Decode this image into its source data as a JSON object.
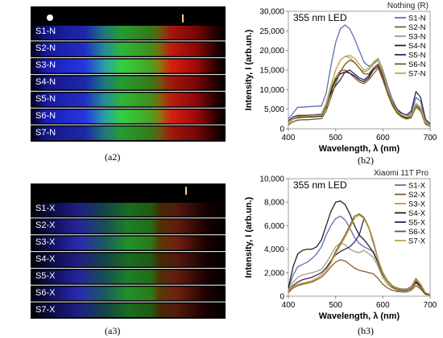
{
  "panels": {
    "a2": {
      "label": "(a2)",
      "rows": [
        "S1-N",
        "S2-N",
        "S3-N",
        "S4-N",
        "S5-N",
        "S6-N",
        "S7-N"
      ]
    },
    "a3": {
      "label": "(a3)",
      "rows": [
        "S1-X",
        "S2-X",
        "S3-X",
        "S4-X",
        "S5-X",
        "S6-X",
        "S7-X"
      ]
    },
    "b2": {
      "label": "(b2)"
    },
    "b3": {
      "label": "(b3)"
    }
  },
  "chart_data": [
    {
      "id": "b2",
      "type": "line",
      "title": "Nothing (R)",
      "annotation": "355 nm LED",
      "xlabel": "Wavelength, λ (nm)",
      "ylabel": "Intensity, I (arb.un.)",
      "xlim": [
        400,
        700
      ],
      "ylim": [
        0,
        30000
      ],
      "xticks": [
        400,
        500,
        600,
        700
      ],
      "yticks": [
        0,
        5000,
        10000,
        15000,
        20000,
        25000,
        30000
      ],
      "ytick_labels": [
        "0",
        "5,000",
        "10,000",
        "15,000",
        "20,000",
        "25,000",
        "30,000"
      ],
      "grid": false,
      "legend": "right",
      "x": [
        400,
        410,
        420,
        430,
        440,
        450,
        460,
        470,
        480,
        490,
        500,
        510,
        520,
        530,
        540,
        550,
        560,
        570,
        580,
        590,
        600,
        610,
        620,
        630,
        640,
        650,
        660,
        670,
        680,
        690,
        700
      ],
      "series": [
        {
          "name": "S1-N",
          "color": "#5b6fb5",
          "values": [
            2500,
            4000,
            5500,
            5500,
            5600,
            5700,
            5800,
            5800,
            9000,
            16000,
            22000,
            25500,
            26500,
            25500,
            23000,
            20000,
            17000,
            16000,
            16500,
            18000,
            15000,
            11000,
            7500,
            5000,
            3500,
            3000,
            4000,
            8000,
            7000,
            2000,
            1000
          ]
        },
        {
          "name": "S2-N",
          "color": "#8a5a28",
          "values": [
            1500,
            2500,
            3000,
            3200,
            3300,
            3400,
            3500,
            3600,
            6000,
            10000,
            13000,
            14800,
            15000,
            14200,
            13000,
            12000,
            11500,
            12500,
            14000,
            15500,
            12500,
            9000,
            6000,
            4000,
            3000,
            2500,
            3000,
            6000,
            5000,
            1500,
            800
          ]
        },
        {
          "name": "S3-N",
          "color": "#a59a7a",
          "values": [
            2000,
            3000,
            3500,
            3500,
            3500,
            3600,
            3700,
            3800,
            6500,
            11000,
            15000,
            17500,
            18500,
            18200,
            17000,
            15500,
            14500,
            15000,
            16500,
            17500,
            14000,
            10000,
            6500,
            4500,
            3500,
            3000,
            3500,
            6500,
            5500,
            1800,
            900
          ]
        },
        {
          "name": "S4-N",
          "color": "#222222",
          "values": [
            1500,
            2500,
            2800,
            2900,
            3000,
            3000,
            3100,
            3200,
            5500,
            9500,
            12500,
            14000,
            14500,
            14200,
            13500,
            12500,
            12000,
            13000,
            15000,
            16000,
            13500,
            9500,
            6500,
            4500,
            3300,
            2800,
            3200,
            6000,
            5000,
            1500,
            800
          ]
        },
        {
          "name": "S5-N",
          "color": "#3a2266",
          "values": [
            2000,
            3000,
            3300,
            3300,
            3400,
            3400,
            3500,
            3600,
            6000,
            9000,
            11000,
            12500,
            14500,
            15000,
            14000,
            13000,
            12500,
            13500,
            15500,
            16500,
            13500,
            9800,
            7000,
            5000,
            4000,
            3500,
            4500,
            9500,
            8000,
            2500,
            1200
          ]
        },
        {
          "name": "S6-N",
          "color": "#6b5a22",
          "values": [
            1000,
            1800,
            2200,
            2300,
            2300,
            2400,
            2500,
            2600,
            4500,
            8000,
            11500,
            14500,
            16500,
            17500,
            17000,
            15500,
            14000,
            14000,
            15500,
            16500,
            13000,
            9000,
            6000,
            4000,
            3000,
            2500,
            2800,
            5500,
            4500,
            1200,
            600
          ]
        },
        {
          "name": "S7-N",
          "color": "#c2aa3a",
          "values": [
            1500,
            2600,
            3000,
            3100,
            3200,
            3300,
            3400,
            3500,
            6000,
            10500,
            15000,
            17500,
            18500,
            18800,
            18000,
            16500,
            15000,
            15500,
            17000,
            18000,
            14500,
            10000,
            6800,
            4500,
            3500,
            3000,
            3200,
            6200,
            5200,
            1600,
            800
          ]
        }
      ]
    },
    {
      "id": "b3",
      "type": "line",
      "title": "Xiaomi 11T Pro",
      "annotation": "355 nm LED",
      "xlabel": "Wavelength, λ (nm)",
      "ylabel": "Intensity, I (arb.un.)",
      "xlim": [
        400,
        700
      ],
      "ylim": [
        0,
        10000
      ],
      "xticks": [
        400,
        500,
        600,
        700
      ],
      "yticks": [
        0,
        2000,
        4000,
        6000,
        8000,
        10000
      ],
      "ytick_labels": [
        "0",
        "2,000",
        "4,000",
        "6,000",
        "8,000",
        "10,000"
      ],
      "grid": false,
      "legend": "right",
      "x": [
        400,
        410,
        420,
        430,
        440,
        450,
        460,
        470,
        480,
        490,
        500,
        510,
        520,
        530,
        540,
        550,
        560,
        570,
        580,
        590,
        600,
        610,
        620,
        630,
        640,
        650,
        660,
        670,
        680,
        690,
        700
      ],
      "series": [
        {
          "name": "S1-X",
          "color": "#5b6fb5",
          "values": [
            600,
            1800,
            2500,
            2700,
            2900,
            3200,
            3600,
            4200,
            5200,
            6000,
            6600,
            6800,
            6500,
            5800,
            5000,
            4500,
            4200,
            4000,
            3800,
            2800,
            1800,
            1200,
            800,
            600,
            500,
            500,
            700,
            1200,
            800,
            200,
            100
          ]
        },
        {
          "name": "S2-X",
          "color": "#8a5a28",
          "values": [
            300,
            700,
            900,
            1000,
            1100,
            1200,
            1400,
            1600,
            2000,
            2500,
            2900,
            3100,
            3000,
            2700,
            2400,
            2200,
            2100,
            2000,
            1900,
            1500,
            1000,
            700,
            500,
            400,
            350,
            350,
            500,
            900,
            600,
            150,
            80
          ]
        },
        {
          "name": "S3-X",
          "color": "#a59a7a",
          "values": [
            500,
            1200,
            1600,
            1800,
            1900,
            2000,
            2100,
            2300,
            2800,
            3500,
            4200,
            4500,
            4400,
            4000,
            3800,
            3700,
            3900,
            3600,
            3300,
            2500,
            1600,
            1000,
            700,
            500,
            400,
            400,
            600,
            1100,
            700,
            200,
            100
          ]
        },
        {
          "name": "S4-X",
          "color": "#222222",
          "values": [
            700,
            2500,
            3600,
            3900,
            4000,
            4000,
            4200,
            4800,
            6000,
            7200,
            8000,
            8100,
            7800,
            7000,
            6000,
            5200,
            4800,
            4300,
            3700,
            2800,
            1800,
            1200,
            800,
            600,
            500,
            500,
            700,
            1200,
            800,
            200,
            100
          ]
        },
        {
          "name": "S5-X",
          "color": "#3a2266",
          "values": [
            400,
            900,
            1200,
            1400,
            1500,
            1600,
            1800,
            2000,
            2400,
            3000,
            3500,
            3800,
            4000,
            4200,
            4600,
            5200,
            6600,
            5800,
            4500,
            3000,
            1900,
            1200,
            800,
            600,
            500,
            500,
            700,
            1300,
            900,
            250,
            120
          ]
        },
        {
          "name": "S6-X",
          "color": "#6b5a22",
          "values": [
            400,
            800,
            1000,
            1100,
            1200,
            1300,
            1500,
            1800,
            2200,
            2900,
            3800,
            4500,
            5200,
            6000,
            6800,
            7000,
            6700,
            5900,
            4700,
            3100,
            2000,
            1300,
            900,
            700,
            600,
            600,
            800,
            1500,
            1000,
            300,
            150
          ]
        },
        {
          "name": "S7-X",
          "color": "#c2aa3a",
          "values": [
            400,
            800,
            1000,
            1100,
            1200,
            1300,
            1500,
            1800,
            2200,
            2800,
            3600,
            4300,
            5000,
            5800,
            6600,
            6900,
            6600,
            5800,
            4600,
            3000,
            1900,
            1200,
            850,
            650,
            550,
            550,
            750,
            1400,
            950,
            280,
            140
          ]
        }
      ]
    }
  ]
}
